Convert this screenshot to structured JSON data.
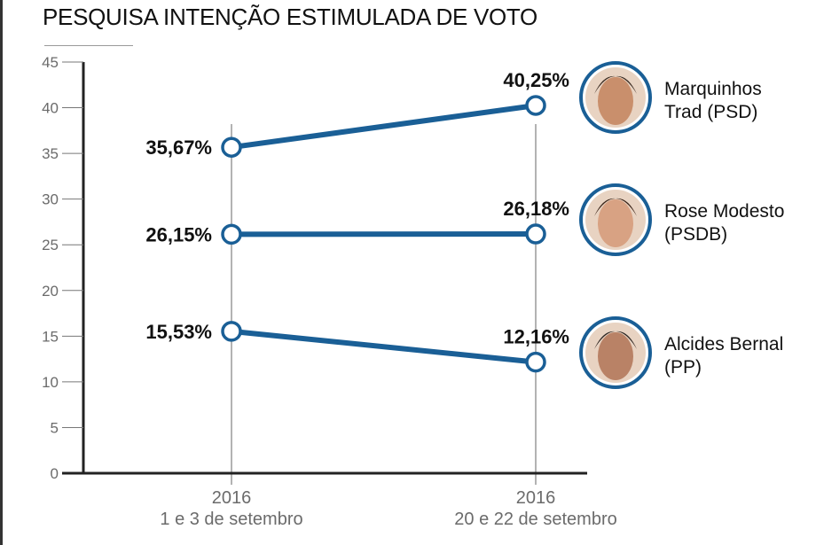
{
  "chart_data": {
    "type": "line",
    "title": "PESQUISA INTENÇÃO ESTIMULADA DE VOTO",
    "xlabel": "",
    "ylabel": "",
    "ylim": [
      0,
      45
    ],
    "yticks": [
      0,
      5,
      10,
      15,
      20,
      25,
      30,
      35,
      40,
      45
    ],
    "ytick_labels": [
      "0",
      "5",
      "10",
      "15",
      "20",
      "25",
      "30",
      "35",
      "40",
      "45"
    ],
    "categories": [
      {
        "year": "2016",
        "dates": "1 e 3 de setembro"
      },
      {
        "year": "2016",
        "dates": "20 e 22 de setembro"
      }
    ],
    "grid": false,
    "legend": "right",
    "colors": {
      "line": "#1a5f96",
      "axis": "#222222",
      "gridline": "#9a9a9a",
      "tick_text": "#6b6b6b"
    },
    "series": [
      {
        "name": "Marquinhos",
        "party_line": "Trad (PSD)",
        "values": [
          35.67,
          40.25
        ],
        "labels": [
          "35,67%",
          "40,25%"
        ],
        "photo": "portrait-marquinhos-trad"
      },
      {
        "name": "Rose Modesto",
        "party_line": "(PSDB)",
        "values": [
          26.15,
          26.18
        ],
        "labels": [
          "26,15%",
          "26,18%"
        ],
        "photo": "portrait-rose-modesto"
      },
      {
        "name": "Alcides Bernal",
        "party_line": "(PP)",
        "values": [
          15.53,
          12.16
        ],
        "labels": [
          "15,53%",
          "12,16%"
        ],
        "photo": "portrait-alcides-bernal"
      }
    ]
  }
}
